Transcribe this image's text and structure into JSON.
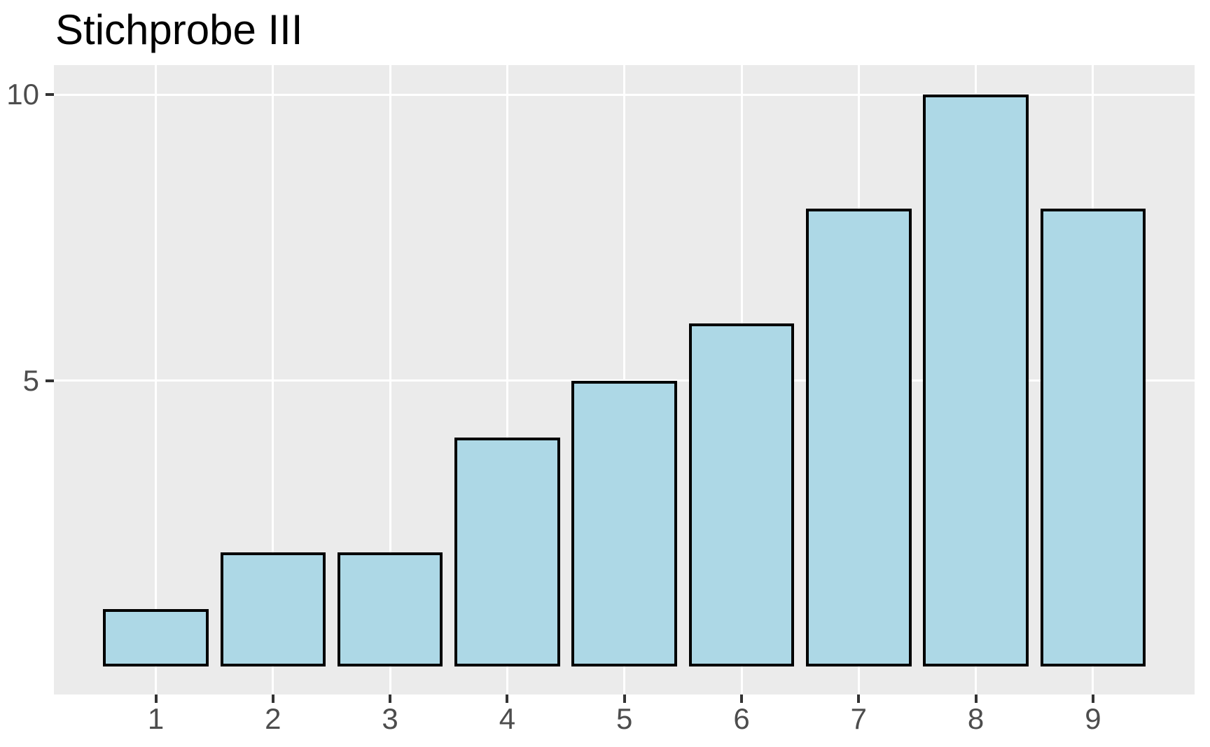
{
  "chart_data": {
    "type": "bar",
    "title": "Stichprobe III",
    "categories": [
      1,
      2,
      3,
      4,
      5,
      6,
      7,
      8,
      9
    ],
    "values": [
      1,
      2,
      2,
      4,
      5,
      6,
      8,
      10,
      8
    ],
    "x_tick_labels": [
      "1",
      "2",
      "3",
      "4",
      "5",
      "6",
      "7",
      "8",
      "9"
    ],
    "y_tick_labels": [
      "5",
      "10"
    ],
    "y_tick_values": [
      5,
      10
    ],
    "xlabel": "",
    "ylabel": "",
    "xlim": [
      0.105,
      9.895
    ],
    "ylim": [
      -0.5,
      10.5
    ],
    "bar_width": 0.9,
    "grid": "major-only",
    "legend": "none",
    "colors": {
      "bar_fill": "#ADD8E6",
      "bar_border": "#000000",
      "panel_bg": "#EBEBEB",
      "grid_line": "#FFFFFF",
      "axis_text": "#4D4D4D",
      "tick_mark": "#333333",
      "title_text": "#000000",
      "page_bg": "#FFFFFF"
    }
  }
}
